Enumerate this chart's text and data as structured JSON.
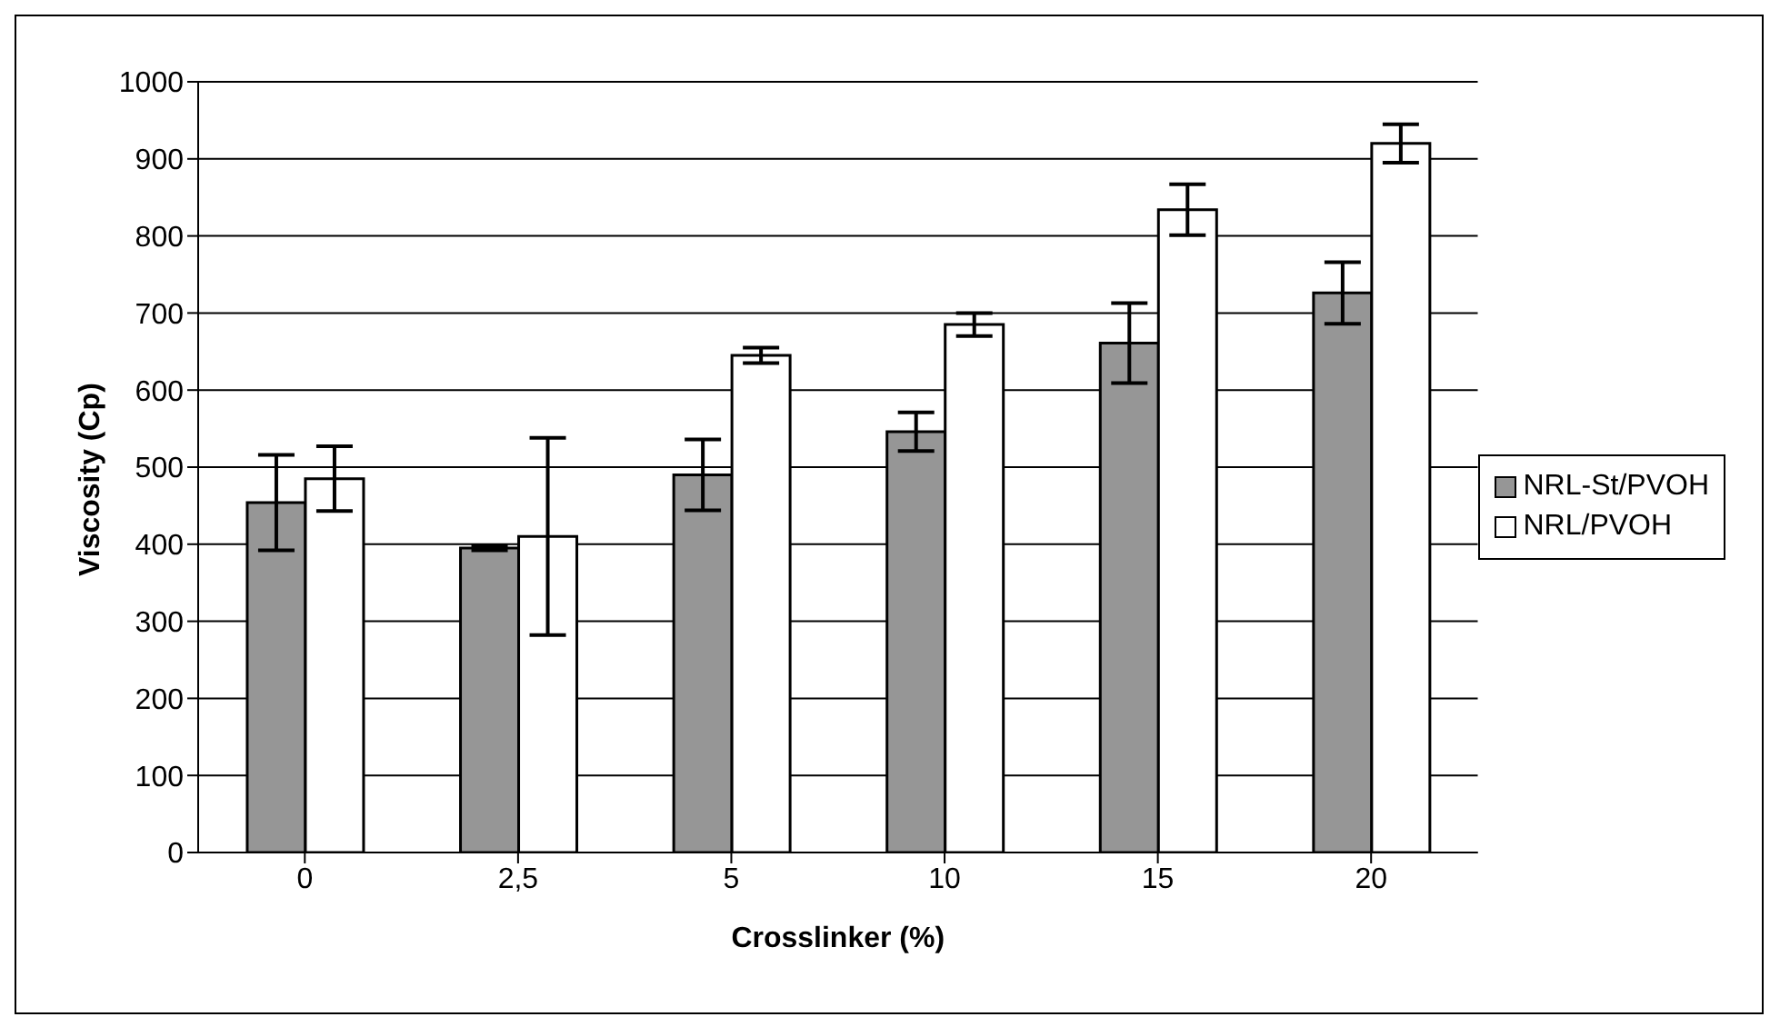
{
  "chart_data": {
    "type": "bar",
    "xlabel": "Crosslinker (%)",
    "ylabel": "Viscosity (Cp)",
    "categories": [
      "0",
      "2,5",
      "5",
      "10",
      "15",
      "20"
    ],
    "series": [
      {
        "name": "NRL-St/PVOH",
        "color": "#969696",
        "values": [
          454,
          395,
          490,
          546,
          661,
          726
        ],
        "errors": [
          62,
          3,
          46,
          25,
          52,
          40
        ]
      },
      {
        "name": "NRL/PVOH",
        "color": "#ffffff",
        "values": [
          485,
          410,
          645,
          685,
          834,
          920
        ],
        "errors": [
          42,
          128,
          10,
          15,
          33,
          25
        ]
      }
    ],
    "ylim": [
      0,
      1000
    ],
    "yticks": [
      0,
      100,
      200,
      300,
      400,
      500,
      600,
      700,
      800,
      900,
      1000
    ],
    "grid": "y",
    "legend": "right"
  }
}
